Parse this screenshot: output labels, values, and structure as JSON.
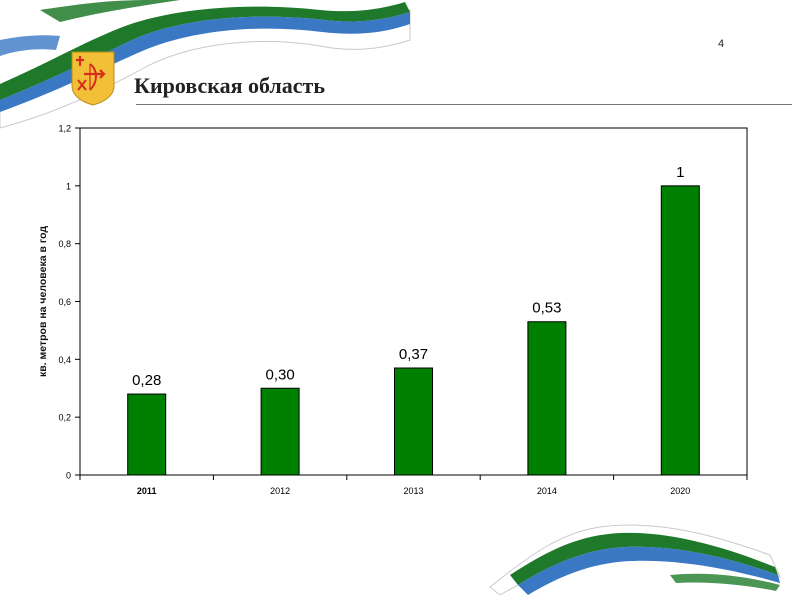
{
  "header": {
    "title": "Кировская область",
    "page_number": "4"
  },
  "colors": {
    "bar": "#008000",
    "ribbon_green": "#1e7a2a",
    "ribbon_blue": "#3a78c4",
    "emblem_bg": "#f2c037",
    "emblem_red": "#d62a1e"
  },
  "icons": {
    "emblem": "kirov-oblast-coat-of-arms-icon",
    "ribbon": "flag-ribbon-decoration"
  },
  "chart_data": {
    "type": "bar",
    "categories": [
      "2011",
      "2012",
      "2013",
      "2014",
      "2020"
    ],
    "values": [
      0.28,
      0.3,
      0.37,
      0.53,
      1
    ],
    "value_labels": [
      "0,28",
      "0,30",
      "0,37",
      "0,53",
      "1"
    ],
    "ytick_values": [
      0,
      0.2,
      0.4,
      0.6,
      0.8,
      1,
      1.2
    ],
    "ytick_labels": [
      "0",
      "0,2",
      "0,4",
      "0,6",
      "0,8",
      "1",
      "1,2"
    ],
    "ylabel": "кв. метров на человека в год",
    "xlabel": "",
    "title": "",
    "ylim": [
      0,
      1.2
    ],
    "grid": false,
    "legend": "none"
  }
}
